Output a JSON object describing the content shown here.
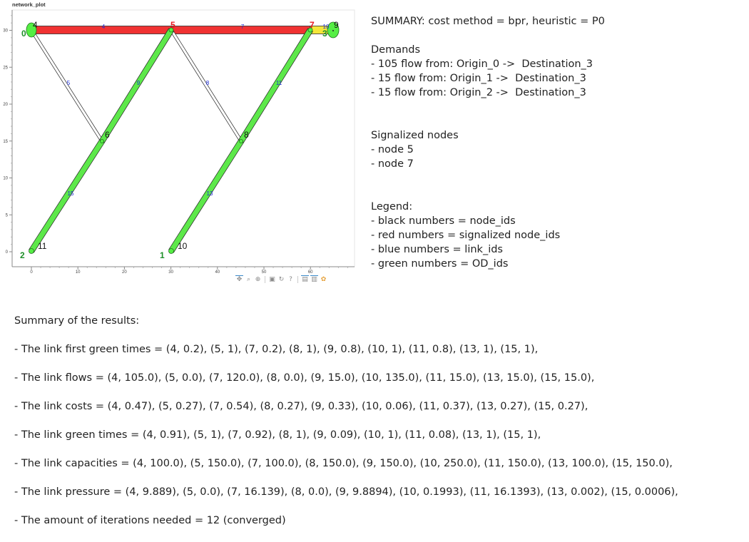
{
  "plot": {
    "title": "network_plot",
    "x_ticks": [
      "0",
      "10",
      "20",
      "30",
      "40",
      "50",
      "60"
    ],
    "y_ticks": [
      "0",
      "5",
      "10",
      "15",
      "20",
      "25",
      "30"
    ],
    "nodes": [
      {
        "id": "0",
        "kind": "od"
      },
      {
        "id": "1",
        "kind": "od"
      },
      {
        "id": "2",
        "kind": "od"
      },
      {
        "id": "3",
        "kind": "od"
      },
      {
        "id": "4",
        "kind": "node"
      },
      {
        "id": "5",
        "kind": "signal"
      },
      {
        "id": "6",
        "kind": "node"
      },
      {
        "id": "7",
        "kind": "signal"
      },
      {
        "id": "8",
        "kind": "node"
      },
      {
        "id": "9",
        "kind": "node"
      },
      {
        "id": "10",
        "kind": "node"
      },
      {
        "id": "11",
        "kind": "node"
      }
    ],
    "links": [
      {
        "id": "4",
        "color": "#f03232"
      },
      {
        "id": "5",
        "color": "#ffffff"
      },
      {
        "id": "7",
        "color": "#f03232"
      },
      {
        "id": "8",
        "color": "#ffffff"
      },
      {
        "id": "9",
        "color": "#5de84a"
      },
      {
        "id": "10",
        "color": "#f5e63a"
      },
      {
        "id": "11",
        "color": "#5de84a"
      },
      {
        "id": "13",
        "color": "#5de84a"
      },
      {
        "id": "15",
        "color": "#5de84a"
      }
    ],
    "colors": {
      "node_fill": "#55ee44",
      "signal_label": "#e8141d",
      "od_label": "#1f8f2a",
      "link_label": "#1a2bd6"
    },
    "toolbar_icons": [
      "pan-icon",
      "box-zoom-icon",
      "wheel-zoom-icon",
      "save-icon",
      "reset-icon",
      "help-icon",
      "hover-icon",
      "tap-icon",
      "bokeh-logo-icon"
    ]
  },
  "summary": {
    "header": "SUMMARY: cost method = bpr, heuristic = P0",
    "demands_title": "Demands",
    "demands": [
      "- 105 flow from: Origin_0 ->  Destination_3",
      "- 15 flow from: Origin_1 ->  Destination_3",
      "- 15 flow from: Origin_2 ->  Destination_3"
    ],
    "signalized_title": "Signalized nodes",
    "signalized": [
      "- node 5",
      "- node 7"
    ],
    "legend_title": "Legend:",
    "legend": [
      "- black numbers = node_ids",
      "- red numbers = signalized node_ids",
      "- blue numbers = link_ids",
      "- green numbers = OD_ids"
    ]
  },
  "results": {
    "title": "Summary of the results:",
    "first_green_times": "- The link first green times = (4, 0.2), (5, 1), (7, 0.2), (8, 1), (9, 0.8), (10, 1), (11, 0.8), (13, 1), (15, 1),",
    "flows": "- The link flows = (4, 105.0), (5, 0.0), (7, 120.0), (8, 0.0), (9, 15.0), (10, 135.0), (11, 15.0), (13, 15.0), (15, 15.0),",
    "costs": "- The link costs = (4, 0.47), (5, 0.27), (7, 0.54), (8, 0.27), (9, 0.33), (10, 0.06), (11, 0.37), (13, 0.27), (15, 0.27),",
    "green_times": "- The link green times = (4, 0.91), (5, 1), (7, 0.92), (8, 1), (9, 0.09), (10, 1), (11, 0.08), (13, 1), (15, 1),",
    "capacities": "- The link capacities = (4, 100.0), (5, 150.0), (7, 100.0), (8, 150.0), (9, 150.0), (10, 250.0), (11, 150.0), (13, 100.0), (15, 150.0),",
    "pressure": "- The link pressure = (4, 9.889), (5, 0.0), (7, 16.139), (8, 0.0), (9, 9.8894), (10, 0.1993), (11, 16.1393), (13, 0.002), (15, 0.0006),",
    "iterations": "- The amount of iterations needed = 12 (converged)"
  }
}
